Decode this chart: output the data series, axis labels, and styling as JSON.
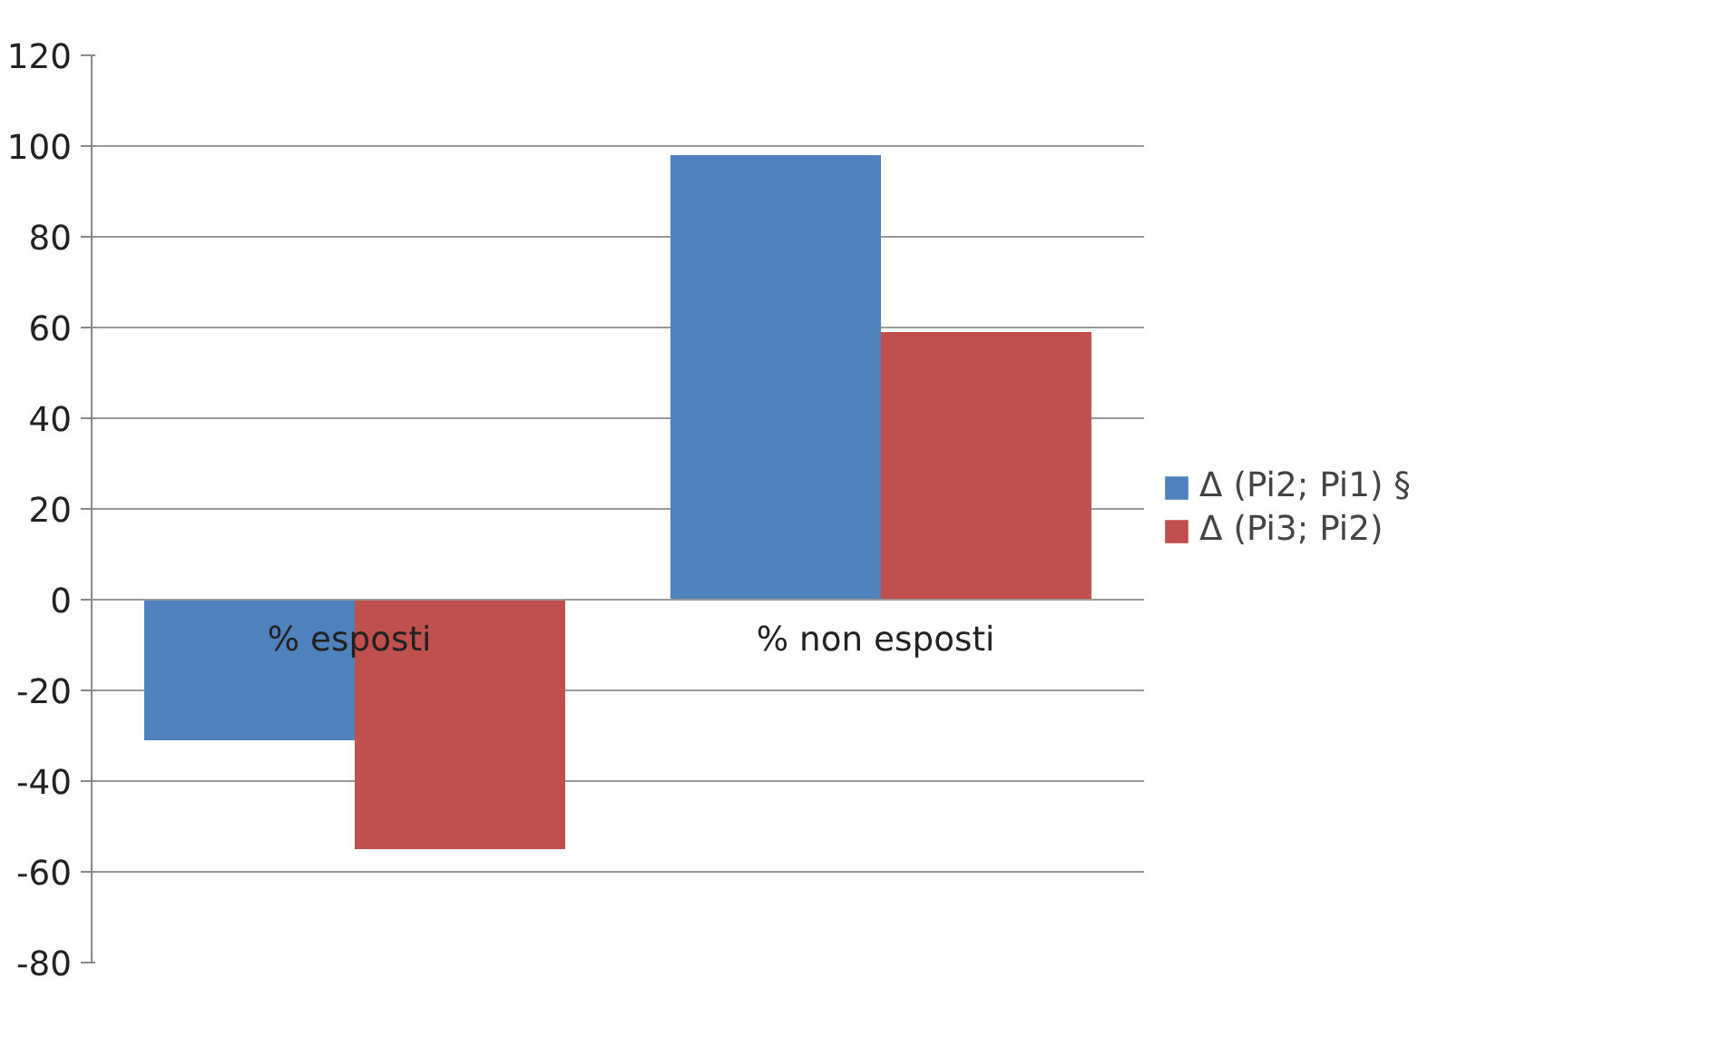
{
  "chart_data": {
    "type": "bar",
    "categories": [
      "%  esposti",
      "%  non esposti"
    ],
    "series": [
      {
        "name": "Δ (Pi2; Pi1) §",
        "color": "#4f81bd",
        "values": [
          -31,
          98
        ]
      },
      {
        "name": "Δ (Pi3; Pi2)",
        "color": "#c0504d",
        "values": [
          -55,
          59
        ]
      }
    ],
    "ylim": [
      -80,
      120
    ],
    "yticks": [
      -80,
      -60,
      -40,
      -20,
      0,
      20,
      40,
      60,
      80,
      100,
      120
    ],
    "grid": "y",
    "legend": "right"
  }
}
